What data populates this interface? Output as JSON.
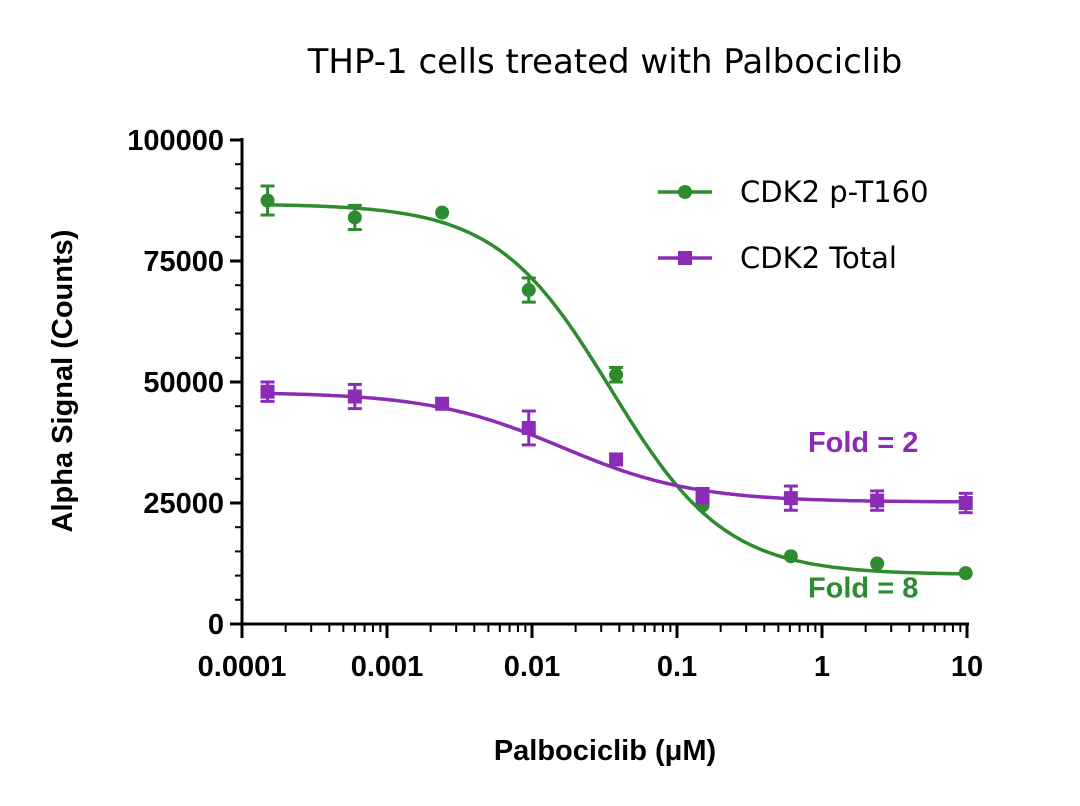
{
  "chart_data": {
    "type": "line",
    "title": "THP-1 cells treated with Palbociclib",
    "xlabel": "Palbociclib (μM)",
    "ylabel": "Alpha Signal (Counts)",
    "x_scale": "log",
    "xlim": [
      0.0001,
      10
    ],
    "ylim": [
      0,
      100000
    ],
    "x_ticks": [
      0.0001,
      0.001,
      0.01,
      0.1,
      1,
      10
    ],
    "x_tick_labels": [
      "0.0001",
      "0.001",
      "0.01",
      "0.1",
      "1",
      "10"
    ],
    "y_ticks": [
      0,
      25000,
      50000,
      75000,
      100000
    ],
    "y_tick_labels": [
      "0",
      "25000",
      "50000",
      "75000",
      "100000"
    ],
    "legend_position": "top-right",
    "series": [
      {
        "name": "CDK2 p-T160",
        "color": "#2e8b2e",
        "marker": "circle",
        "x": [
          0.00015,
          0.0006,
          0.0024,
          0.0095,
          0.038,
          0.15,
          0.61,
          2.4,
          9.8
        ],
        "y": [
          87500,
          84000,
          85000,
          69000,
          51500,
          24500,
          14000,
          12500,
          10500
        ],
        "error": [
          3000,
          2500,
          0,
          2500,
          1500,
          0,
          0,
          0,
          0
        ],
        "fit": {
          "top": 86800,
          "bottom": 10200,
          "ec50": 0.035,
          "hill": 1.1
        }
      },
      {
        "name": "CDK2 Total",
        "color": "#8a2cb6",
        "marker": "square",
        "x": [
          0.00015,
          0.0006,
          0.0024,
          0.0095,
          0.038,
          0.15,
          0.61,
          2.4,
          9.8
        ],
        "y": [
          48000,
          47000,
          45500,
          40500,
          34000,
          26500,
          26000,
          25500,
          25000
        ],
        "error": [
          2000,
          2500,
          0,
          3500,
          0,
          1500,
          2500,
          2000,
          2000
        ],
        "fit": {
          "top": 47900,
          "bottom": 25200,
          "ec50": 0.016,
          "hill": 0.95
        }
      }
    ],
    "annotations": [
      {
        "text": "Fold = 2",
        "color": "#8a2cb6",
        "x": 0.8,
        "y": 35500
      },
      {
        "text": "Fold = 8",
        "color": "#2e8b2e",
        "x": 0.8,
        "y": 5500
      }
    ]
  }
}
